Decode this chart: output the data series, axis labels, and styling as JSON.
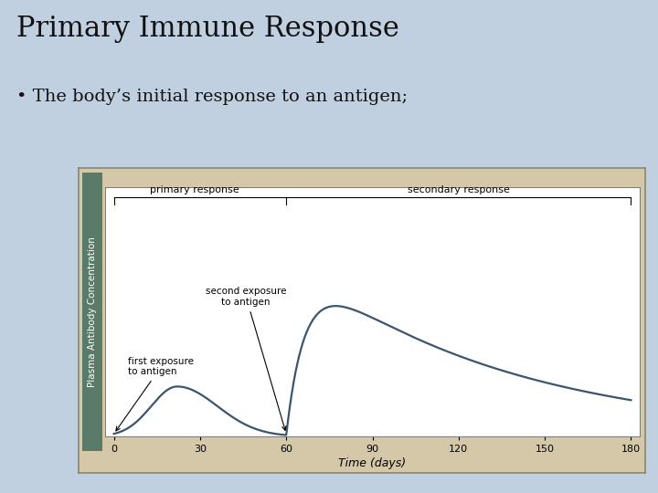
{
  "title": "Primary Immune Response",
  "bullet": "• The body’s initial response to an antigen;",
  "bg_color": "#c0d0e0",
  "plot_outer_bg": "#d4c8a8",
  "inner_bg": "#ffffff",
  "ylabel_bg": "#5a7a6a",
  "curve_color": "#3a5570",
  "xlabel": "Time (days)",
  "ylabel": "Plasma Antibody Concentration",
  "xticks": [
    0,
    30,
    60,
    90,
    120,
    150,
    180
  ],
  "xlim": [
    -3,
    183
  ],
  "ylim": [
    0,
    100
  ],
  "primary_response_label": "primary response",
  "secondary_response_label": "secondary response",
  "first_exposure_label": "first exposure\nto antigen",
  "second_exposure_label": "second exposure\nto antigen",
  "title_fontsize": 22,
  "bullet_fontsize": 14,
  "axis_fontsize": 8,
  "bracket_fontsize": 8,
  "annot_fontsize": 7.5
}
